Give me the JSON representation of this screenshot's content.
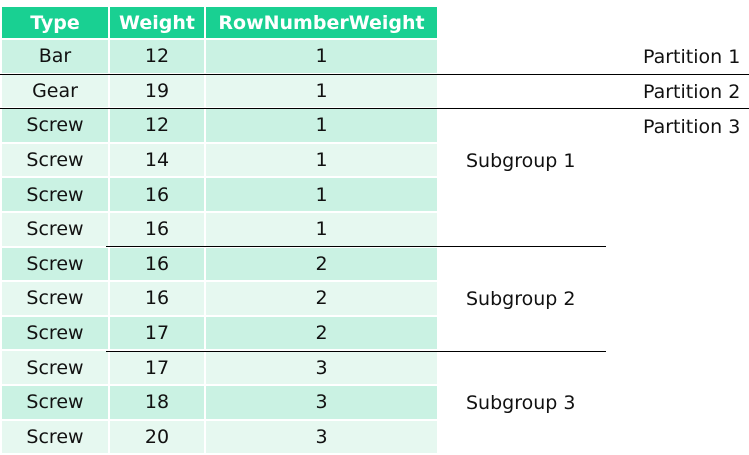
{
  "table": {
    "headers": [
      "Type",
      "Weight",
      "RowNumberWeight"
    ],
    "rows": [
      [
        "Bar",
        "12",
        "1"
      ],
      [
        "Gear",
        "19",
        "1"
      ],
      [
        "Screw",
        "12",
        "1"
      ],
      [
        "Screw",
        "14",
        "1"
      ],
      [
        "Screw",
        "16",
        "1"
      ],
      [
        "Screw",
        "16",
        "1"
      ],
      [
        "Screw",
        "16",
        "2"
      ],
      [
        "Screw",
        "16",
        "2"
      ],
      [
        "Screw",
        "17",
        "2"
      ],
      [
        "Screw",
        "17",
        "3"
      ],
      [
        "Screw",
        "18",
        "3"
      ],
      [
        "Screw",
        "20",
        "3"
      ]
    ]
  },
  "partitions": [
    "Partition 1",
    "Partition 2",
    "Partition 3"
  ],
  "subgroups": [
    "Subgroup 1",
    "Subgroup 2",
    "Subgroup 3"
  ],
  "colors": {
    "header_bg": "#19d092",
    "header_text": "#ffffff",
    "row_odd": "#caf2e3",
    "row_even": "#e6f8f0"
  }
}
